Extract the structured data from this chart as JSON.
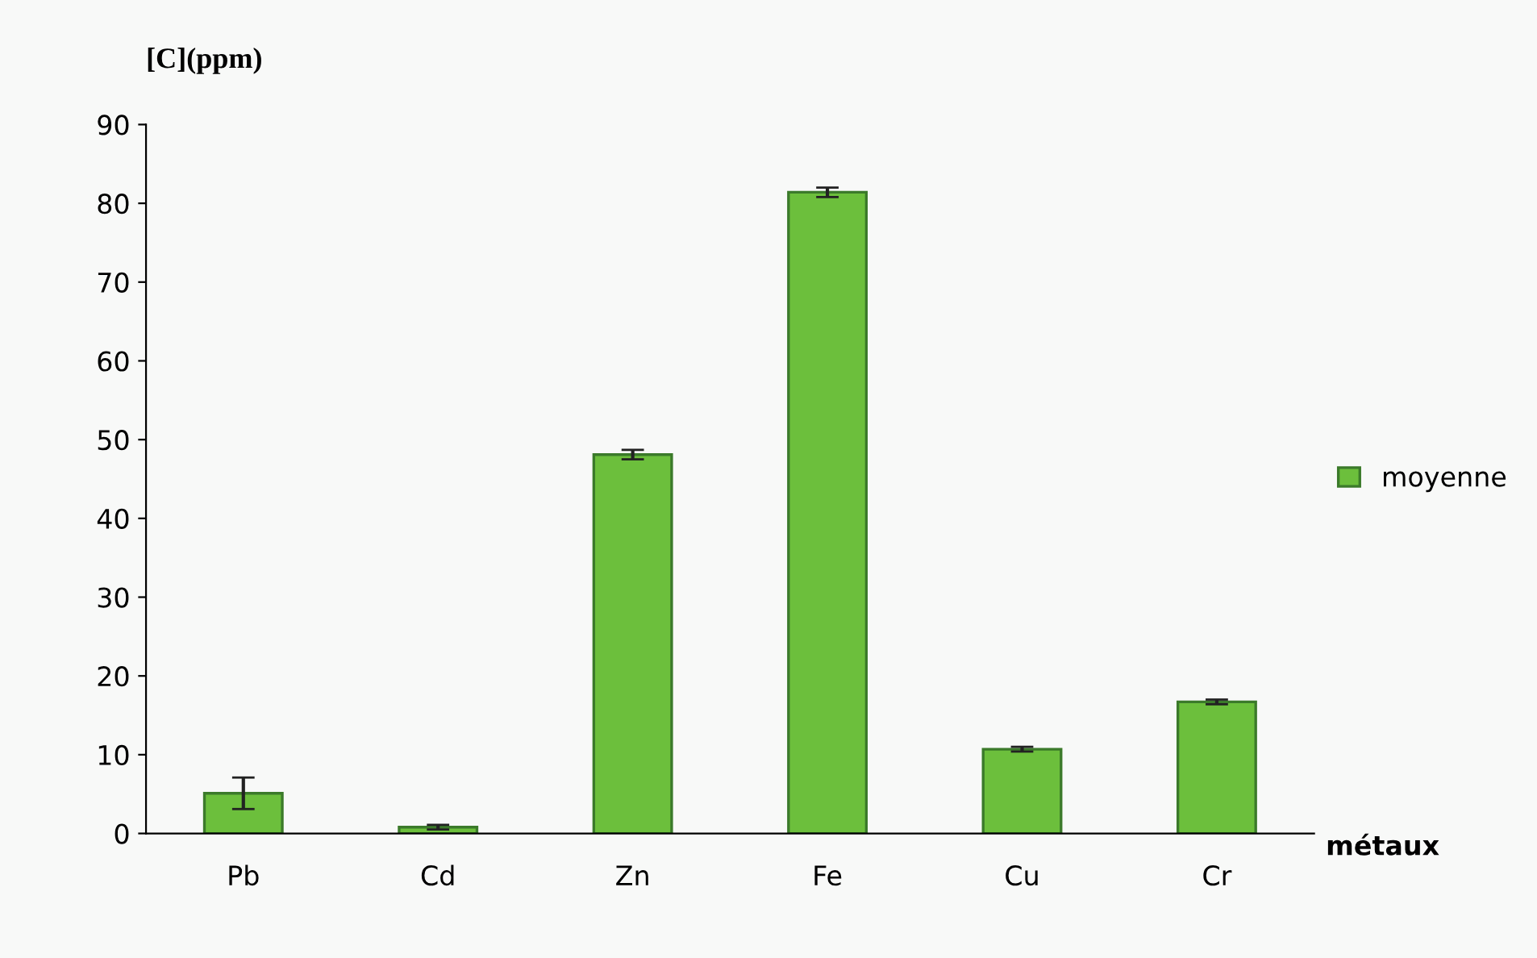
{
  "chart_data": {
    "type": "bar",
    "ylabel": "[C](ppm)",
    "xlabel": "métaux",
    "categories": [
      "Pb",
      "Cd",
      "Zn",
      "Fe",
      "Cu",
      "Cr"
    ],
    "series": [
      {
        "name": "moyenne",
        "color": "#6cbf3c",
        "values": [
          5.1,
          0.8,
          48.1,
          81.4,
          10.7,
          16.7
        ],
        "errors": [
          2,
          0.3,
          0.6,
          0.6,
          0.3,
          0.3
        ]
      }
    ],
    "ylim": [
      0,
      90
    ],
    "yticks": [
      0,
      10,
      20,
      30,
      40,
      50,
      60,
      70,
      80,
      90
    ],
    "grid": false,
    "legend": "right"
  }
}
